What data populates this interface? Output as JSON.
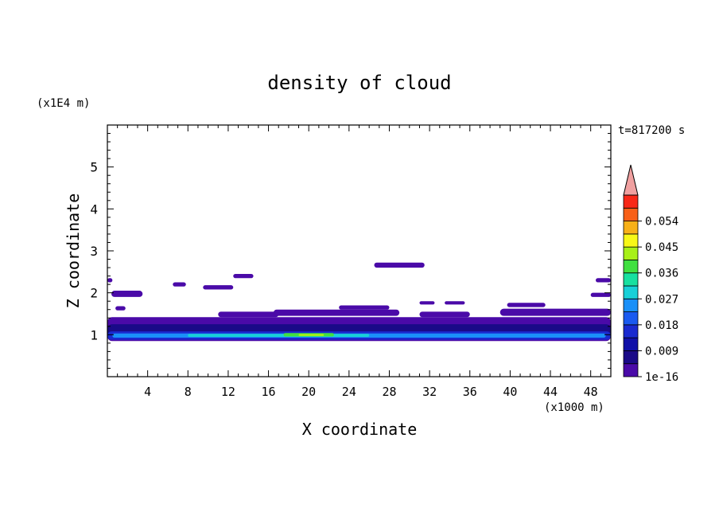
{
  "chart_data": {
    "type": "heatmap",
    "title": "density of cloud",
    "xlabel": "X coordinate",
    "ylabel": "Z coordinate",
    "x_unit": "(x1000 m)",
    "y_unit": "(x1E4 m)",
    "time_label": "t=817200 s",
    "xlim": [
      0,
      50
    ],
    "ylim": [
      0,
      6
    ],
    "x_ticks": [
      4,
      8,
      12,
      16,
      20,
      24,
      28,
      32,
      36,
      40,
      44,
      48
    ],
    "y_ticks": [
      1,
      2,
      3,
      4,
      5
    ],
    "colorbar": {
      "levels": [
        1e-16,
        0.0045,
        0.009,
        0.0135,
        0.018,
        0.0225,
        0.027,
        0.0315,
        0.036,
        0.0405,
        0.045,
        0.0495,
        0.054,
        0.0585
      ],
      "tick_labels": [
        "1e-16",
        "0.009",
        "0.018",
        "0.027",
        "0.036",
        "0.045",
        "0.054"
      ],
      "colors": [
        "#4a0aa8",
        "#1a0a88",
        "#1010a8",
        "#1a2ad0",
        "#1a5af0",
        "#1a90f8",
        "#18d0d8",
        "#18e0a0",
        "#40e040",
        "#a8f018",
        "#f8f818",
        "#f8b018",
        "#f86018",
        "#f82818"
      ],
      "extend_color": "#f0a0a0"
    },
    "regions": [
      {
        "x": [
          0,
          50
        ],
        "z": [
          0.85,
          1.42
        ],
        "value": 0.002
      },
      {
        "x": [
          0,
          50
        ],
        "z": [
          0.9,
          1.25
        ],
        "value": 0.006
      },
      {
        "x": [
          0,
          50
        ],
        "z": [
          0.88,
          1.08
        ],
        "value": 0.016
      },
      {
        "x": [
          0.5,
          49.5
        ],
        "z": [
          0.93,
          1.03
        ],
        "value": 0.024
      },
      {
        "x": [
          8,
          26
        ],
        "z": [
          0.95,
          1.02
        ],
        "value": 0.03
      },
      {
        "x": [
          17.5,
          22.5
        ],
        "z": [
          0.96,
          1.04
        ],
        "value": 0.038
      },
      {
        "x": [
          19,
          21.5
        ],
        "z": [
          0.97,
          1.02
        ],
        "value": 0.044
      },
      {
        "x": [
          11,
          17
        ],
        "z": [
          1.42,
          1.55
        ],
        "value": 0.001
      },
      {
        "x": [
          16.5,
          29
        ],
        "z": [
          1.45,
          1.6
        ],
        "value": 0.001
      },
      {
        "x": [
          23,
          28
        ],
        "z": [
          1.6,
          1.7
        ],
        "value": 0.001
      },
      {
        "x": [
          31,
          36
        ],
        "z": [
          1.42,
          1.55
        ],
        "value": 0.001
      },
      {
        "x": [
          39,
          50
        ],
        "z": [
          1.45,
          1.62
        ],
        "value": 0.001
      },
      {
        "x": [
          0.8,
          1.8
        ],
        "z": [
          1.58,
          1.68
        ],
        "value": 0.001
      },
      {
        "x": [
          31,
          32.5
        ],
        "z": [
          1.72,
          1.8
        ],
        "value": 0.001
      },
      {
        "x": [
          33.5,
          35.5
        ],
        "z": [
          1.72,
          1.8
        ],
        "value": 0.001
      },
      {
        "x": [
          39.7,
          43.5
        ],
        "z": [
          1.66,
          1.76
        ],
        "value": 0.001
      },
      {
        "x": [
          0.4,
          3.5
        ],
        "z": [
          1.9,
          2.05
        ],
        "value": 0.001
      },
      {
        "x": [
          6.5,
          7.8
        ],
        "z": [
          2.15,
          2.25
        ],
        "value": 0.001
      },
      {
        "x": [
          9.5,
          12.5
        ],
        "z": [
          2.08,
          2.18
        ],
        "value": 0.001
      },
      {
        "x": [
          12.5,
          14.5
        ],
        "z": [
          2.35,
          2.45
        ],
        "value": 0.001
      },
      {
        "x": [
          26.5,
          31.5
        ],
        "z": [
          2.6,
          2.72
        ],
        "value": 0.001
      },
      {
        "x": [
          0,
          0.5
        ],
        "z": [
          2.25,
          2.35
        ],
        "value": 0.001
      },
      {
        "x": [
          48.5,
          50
        ],
        "z": [
          2.25,
          2.35
        ],
        "value": 0.001
      },
      {
        "x": [
          48,
          50
        ],
        "z": [
          1.9,
          2.0
        ],
        "value": 0.001
      }
    ]
  }
}
